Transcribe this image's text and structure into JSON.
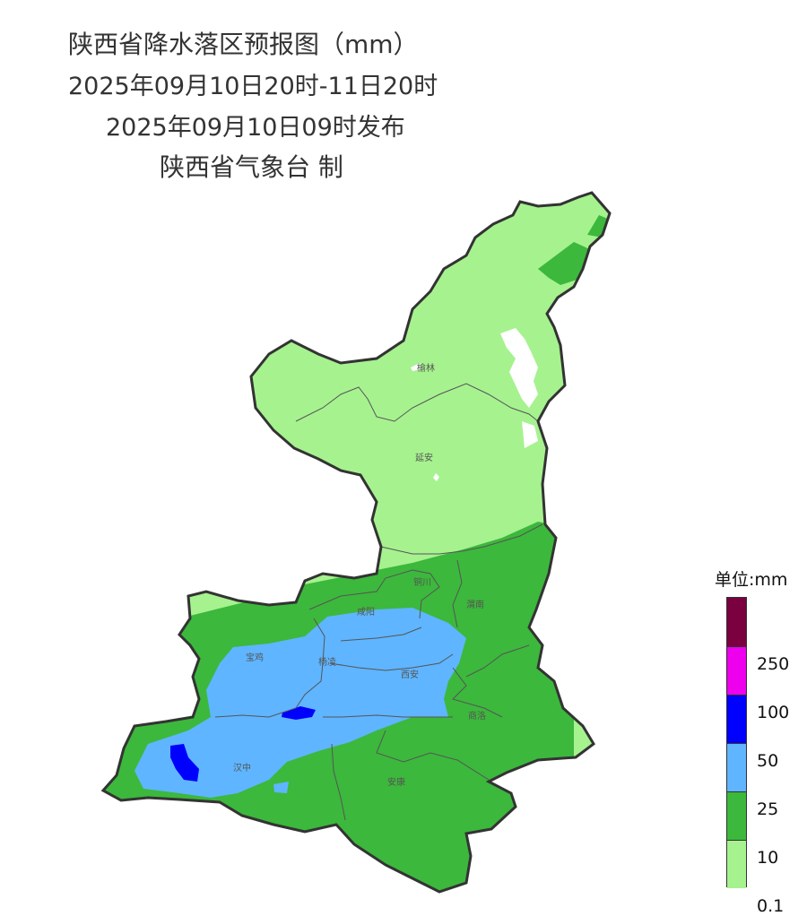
{
  "title": {
    "line1": "陕西省降水落区预报图（mm）",
    "line2": "2025年09月10日20时-11日20时",
    "line3": "2025年09月10日09时发布",
    "line4": "陕西省气象台 制"
  },
  "cities": {
    "yulin": "榆林",
    "yanan": "延安",
    "tongchuan": "铜川",
    "xianyang": "咸阳",
    "weinan": "渭南",
    "baoji": "宝鸡",
    "yangling": "杨凌",
    "xian": "西安",
    "shangluo": "商洛",
    "hanzhong": "汉中",
    "ankang": "安康"
  },
  "legend": {
    "unit": "单位:mm",
    "levels": [
      {
        "label": "",
        "color": "#7a0040"
      },
      {
        "label": "250",
        "color": "#ee00ee"
      },
      {
        "label": "100",
        "color": "#0000ff"
      },
      {
        "label": "50",
        "color": "#5fb5ff"
      },
      {
        "label": "25",
        "color": "#3cb83c"
      },
      {
        "label": "10",
        "color": "#a6f28f"
      },
      {
        "label": "0.1",
        "color": ""
      }
    ]
  },
  "colors": {
    "rain_0_1": "#a6f28f",
    "rain_10": "#3cb83c",
    "rain_25": "#5fb5ff",
    "rain_50": "#0000ff",
    "border": "#333333"
  }
}
